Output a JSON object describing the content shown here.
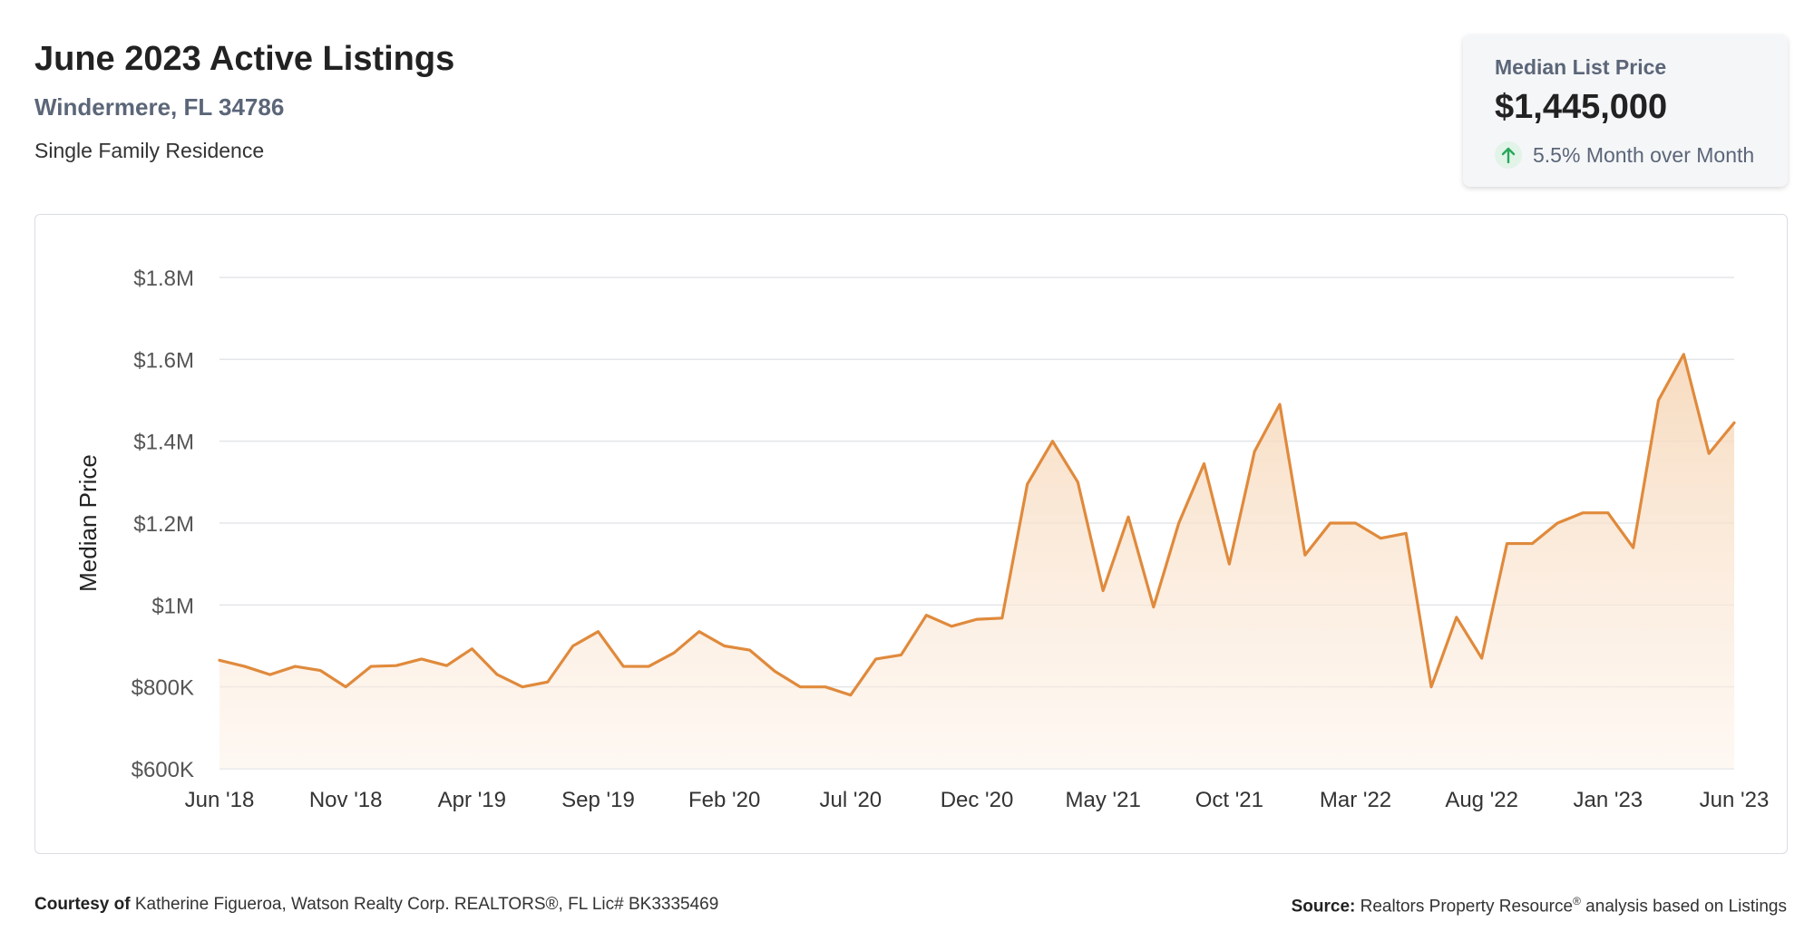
{
  "header": {
    "title": "June 2023 Active Listings",
    "location": "Windermere, FL 34786",
    "property_type": "Single Family Residence"
  },
  "kpi": {
    "label": "Median List Price",
    "value": "$1,445,000",
    "change": "5.5% Month over Month",
    "arrow_icon": "arrow-up-icon",
    "positive_color": "#27a85a"
  },
  "colors": {
    "line": "#e08a3c",
    "fill_top": "#f6d7b8",
    "grid": "#e3e5e8",
    "tick_text": "#555555"
  },
  "footer": {
    "courtesy_label": "Courtesy of",
    "courtesy_text": "Katherine Figueroa, Watson Realty Corp. REALTORS®, FL Lic# BK3335469",
    "source_label": "Source:",
    "source_text_1": "Realtors Property Resource",
    "source_reg": "®",
    "source_text_2": " analysis based on Listings"
  },
  "chart_data": {
    "type": "area",
    "title": "",
    "xlabel": "",
    "ylabel": "Median Price",
    "ylim": [
      600000,
      1800000
    ],
    "yticks": [
      600000,
      800000,
      1000000,
      1200000,
      1400000,
      1600000,
      1800000
    ],
    "ytick_labels": [
      "$600K",
      "$800K",
      "$1M",
      "$1.2M",
      "$1.4M",
      "$1.6M",
      "$1.8M"
    ],
    "xtick_labels": [
      "Jun '18",
      "Nov '18",
      "Apr '19",
      "Sep '19",
      "Feb '20",
      "Jul '20",
      "Dec '20",
      "May '21",
      "Oct '21",
      "Mar '22",
      "Aug '22",
      "Jan '23",
      "Jun '23"
    ],
    "xtick_every": 5,
    "grid": true,
    "legend": "none",
    "series": [
      {
        "values": [
          865000,
          850000,
          830000,
          850000,
          840000,
          800000,
          850000,
          852000,
          868000,
          852000,
          893000,
          830000,
          800000,
          812000,
          900000,
          935000,
          850000,
          850000,
          883000,
          935000,
          900000,
          890000,
          838000,
          800000,
          800000,
          780000,
          868000,
          878000,
          975000,
          948000,
          965000,
          968000,
          1295000,
          1400000,
          1300000,
          1035000,
          1215000,
          995000,
          1200000,
          1345000,
          1100000,
          1375000,
          1490000,
          1122000,
          1200000,
          1200000,
          1163000,
          1175000,
          800000,
          970000,
          870000,
          1150000,
          1150000,
          1200000,
          1225000,
          1225000,
          1140000,
          1500000,
          1612000,
          1370000,
          1445000
        ]
      }
    ]
  }
}
